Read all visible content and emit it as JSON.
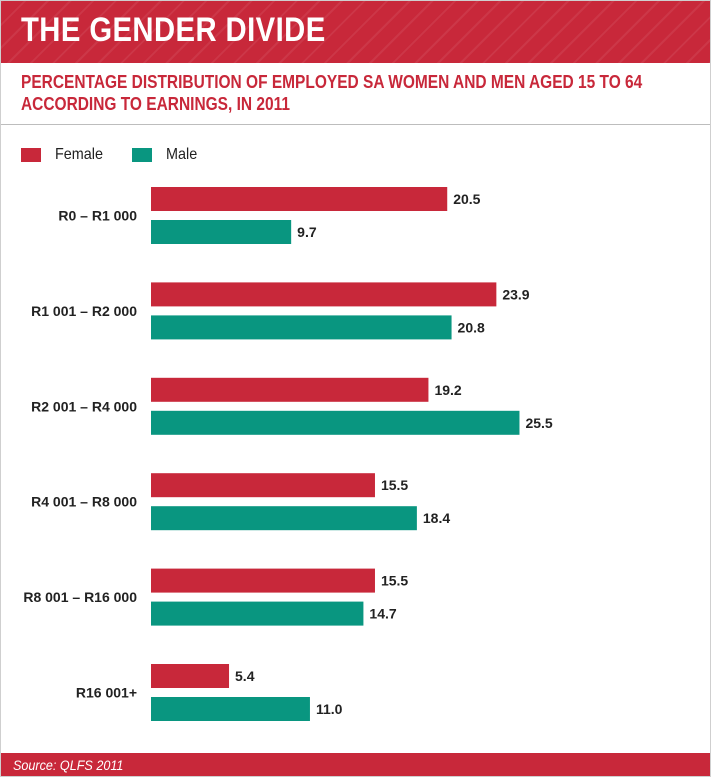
{
  "header": {
    "title": "THE GENDER DIVIDE",
    "subtitle_line1": "PERCENTAGE DISTRIBUTION OF EMPLOYED SA WOMEN AND MEN AGED 15 TO 64",
    "subtitle_line2": "ACCORDING TO EARNINGS, IN 2011"
  },
  "legend": {
    "female_label": "Female",
    "male_label": "Male"
  },
  "footer": {
    "source": "Source: QLFS 2011"
  },
  "colors": {
    "female": "#c8283a",
    "male": "#099680",
    "banner": "#c8283a"
  },
  "chart_data": {
    "type": "bar",
    "orientation": "horizontal",
    "title": "PERCENTAGE DISTRIBUTION OF EMPLOYED SA WOMEN AND MEN AGED 15 TO 64 ACCORDING TO EARNINGS, IN 2011",
    "categories": [
      "R0 – R1 000",
      "R1 001 – R2 000",
      "R2 001 – R4 000",
      "R4 001 – R8 000",
      "R8 001 – R16 000",
      "R16 001+"
    ],
    "series": [
      {
        "name": "Female",
        "values": [
          20.5,
          23.9,
          19.2,
          15.5,
          15.5,
          5.4
        ],
        "labels": [
          "20.5",
          "23.9",
          "19.2",
          "15.5",
          "15.5",
          "5.4"
        ]
      },
      {
        "name": "Male",
        "values": [
          9.7,
          20.8,
          25.5,
          18.4,
          14.7,
          11.0
        ],
        "labels": [
          "9.7",
          "20.8",
          "25.5",
          "18.4",
          "14.7",
          "11.0"
        ]
      }
    ],
    "xlim": [
      0,
      30
    ],
    "grid": false,
    "legend_position": "top-left"
  }
}
